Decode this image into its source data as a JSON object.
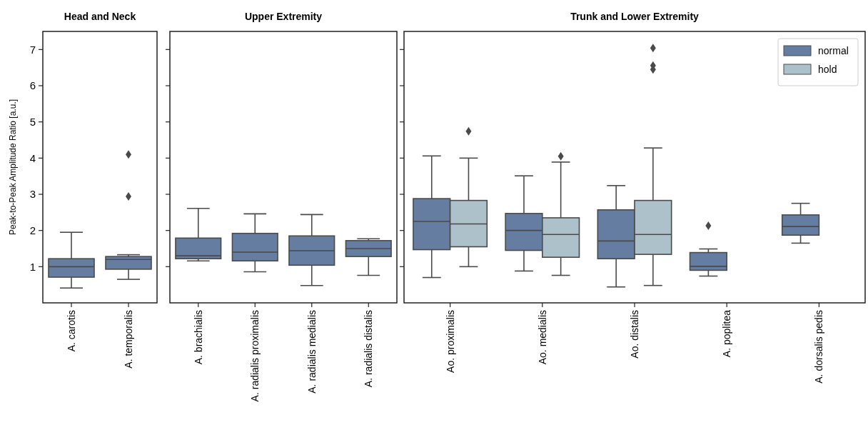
{
  "chart_data": [
    {
      "type": "box",
      "title": "Head and Neck",
      "ylabel": "Peak-to-Peak Amplitude Ratio [a.u.]",
      "categories": [
        "A. carotis",
        "A. temporalis"
      ],
      "ylim": [
        0,
        7.5
      ],
      "yticks": [
        1,
        2,
        3,
        4,
        5,
        6,
        7
      ],
      "color": "#647da1",
      "boxes": [
        {
          "low": 0.41,
          "q1": 0.71,
          "median": 1.0,
          "q3": 1.22,
          "high": 1.95
        },
        {
          "low": 0.65,
          "q1": 0.93,
          "median": 1.2,
          "q3": 1.28,
          "high": 1.33,
          "outliers": [
            4.1,
            2.94
          ]
        }
      ]
    },
    {
      "type": "box",
      "title": "Upper Extremity",
      "categories": [
        "A. brachialis",
        "A. radialis proximalis",
        "A. radialis medialis",
        "A. radialis distalis"
      ],
      "ylim": [
        0,
        7.5
      ],
      "yticks": [
        1,
        2,
        3,
        4,
        5,
        6,
        7
      ],
      "tick_labels": "x",
      "color": "#647da1",
      "boxes": [
        {
          "low": 1.16,
          "q1": 1.22,
          "median": 1.3,
          "q3": 1.79,
          "high": 2.61
        },
        {
          "low": 0.86,
          "q1": 1.16,
          "median": 1.4,
          "q3": 1.92,
          "high": 2.46
        },
        {
          "low": 0.48,
          "q1": 1.04,
          "median": 1.44,
          "q3": 1.85,
          "high": 2.44
        },
        {
          "low": 0.76,
          "q1": 1.28,
          "median": 1.5,
          "q3": 1.72,
          "high": 1.77
        }
      ]
    },
    {
      "type": "box",
      "title": "Trunk and Lower Extremity",
      "categories": [
        "Ao. proximalis",
        "Ao. medialis",
        "Ao. distalis",
        "A. poplitea",
        "A. dorsalis pedis"
      ],
      "ylim": [
        0,
        7.5
      ],
      "yticks": [
        1,
        2,
        3,
        4,
        5,
        6,
        7
      ],
      "tick_labels": "x",
      "legend": "top right",
      "series": [
        {
          "name": "normal",
          "color": "#647da1",
          "boxes": [
            {
              "low": 0.7,
              "q1": 1.47,
              "median": 2.25,
              "q3": 2.88,
              "high": 4.06
            },
            {
              "low": 0.88,
              "q1": 1.45,
              "median": 2.0,
              "q3": 2.47,
              "high": 3.51
            },
            {
              "low": 0.44,
              "q1": 1.22,
              "median": 1.71,
              "q3": 2.57,
              "high": 3.24
            },
            {
              "low": 0.74,
              "q1": 0.9,
              "median": 1.01,
              "q3": 1.39,
              "high": 1.49,
              "outliers": [
                2.13
              ]
            },
            {
              "low": 1.65,
              "q1": 1.87,
              "median": 2.11,
              "q3": 2.43,
              "high": 2.75
            }
          ]
        },
        {
          "name": "hold",
          "color": "#adc1cb",
          "boxes": [
            {
              "low": 1.0,
              "q1": 1.55,
              "median": 2.18,
              "q3": 2.83,
              "high": 4.0,
              "outliers": [
                4.74
              ]
            },
            {
              "low": 0.76,
              "q1": 1.26,
              "median": 1.89,
              "q3": 2.35,
              "high": 3.89,
              "outliers": [
                4.05
              ]
            },
            {
              "low": 0.48,
              "q1": 1.34,
              "median": 1.89,
              "q3": 2.83,
              "high": 4.28,
              "outliers": [
                7.04,
                6.56,
                6.45
              ]
            },
            null,
            null
          ]
        }
      ]
    }
  ]
}
